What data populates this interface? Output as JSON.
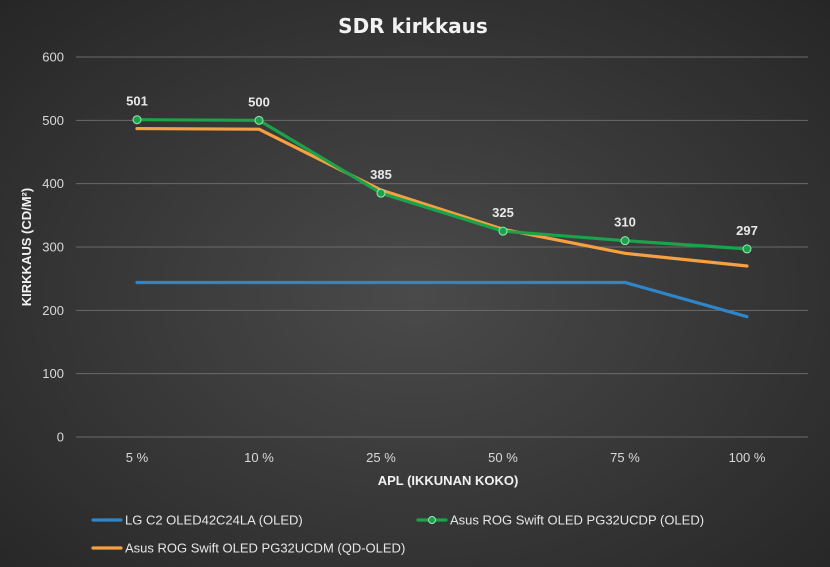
{
  "chart_data": {
    "type": "line",
    "title": "SDR kirkkaus",
    "xlabel": "APL (IKKUNAN KOKO)",
    "ylabel": "KIRKKAUS (CD/M²)",
    "ylim": [
      0,
      600
    ],
    "yticks": [
      0,
      100,
      200,
      300,
      400,
      500,
      600
    ],
    "grid": true,
    "legend_position": "bottom-left",
    "categories": [
      "5 %",
      "10 %",
      "25 %",
      "50 %",
      "75 %",
      "100 %"
    ],
    "series": [
      {
        "name": "LG C2 OLED42C24LA (OLED)",
        "color": "#2e86c9",
        "values": [
          244,
          244,
          244,
          244,
          244,
          190
        ],
        "markers": false,
        "labels": false
      },
      {
        "name": "Asus ROG Swift OLED PG32UCDP (OLED)",
        "color": "#1aa34a",
        "values": [
          501,
          500,
          385,
          325,
          310,
          297
        ],
        "markers": true,
        "labels": true
      },
      {
        "name": "Asus ROG Swift OLED PG32UCDM (QD-OLED)",
        "color": "#f5a142",
        "values": [
          487,
          486,
          390,
          328,
          290,
          270
        ],
        "markers": false,
        "labels": false
      }
    ]
  }
}
